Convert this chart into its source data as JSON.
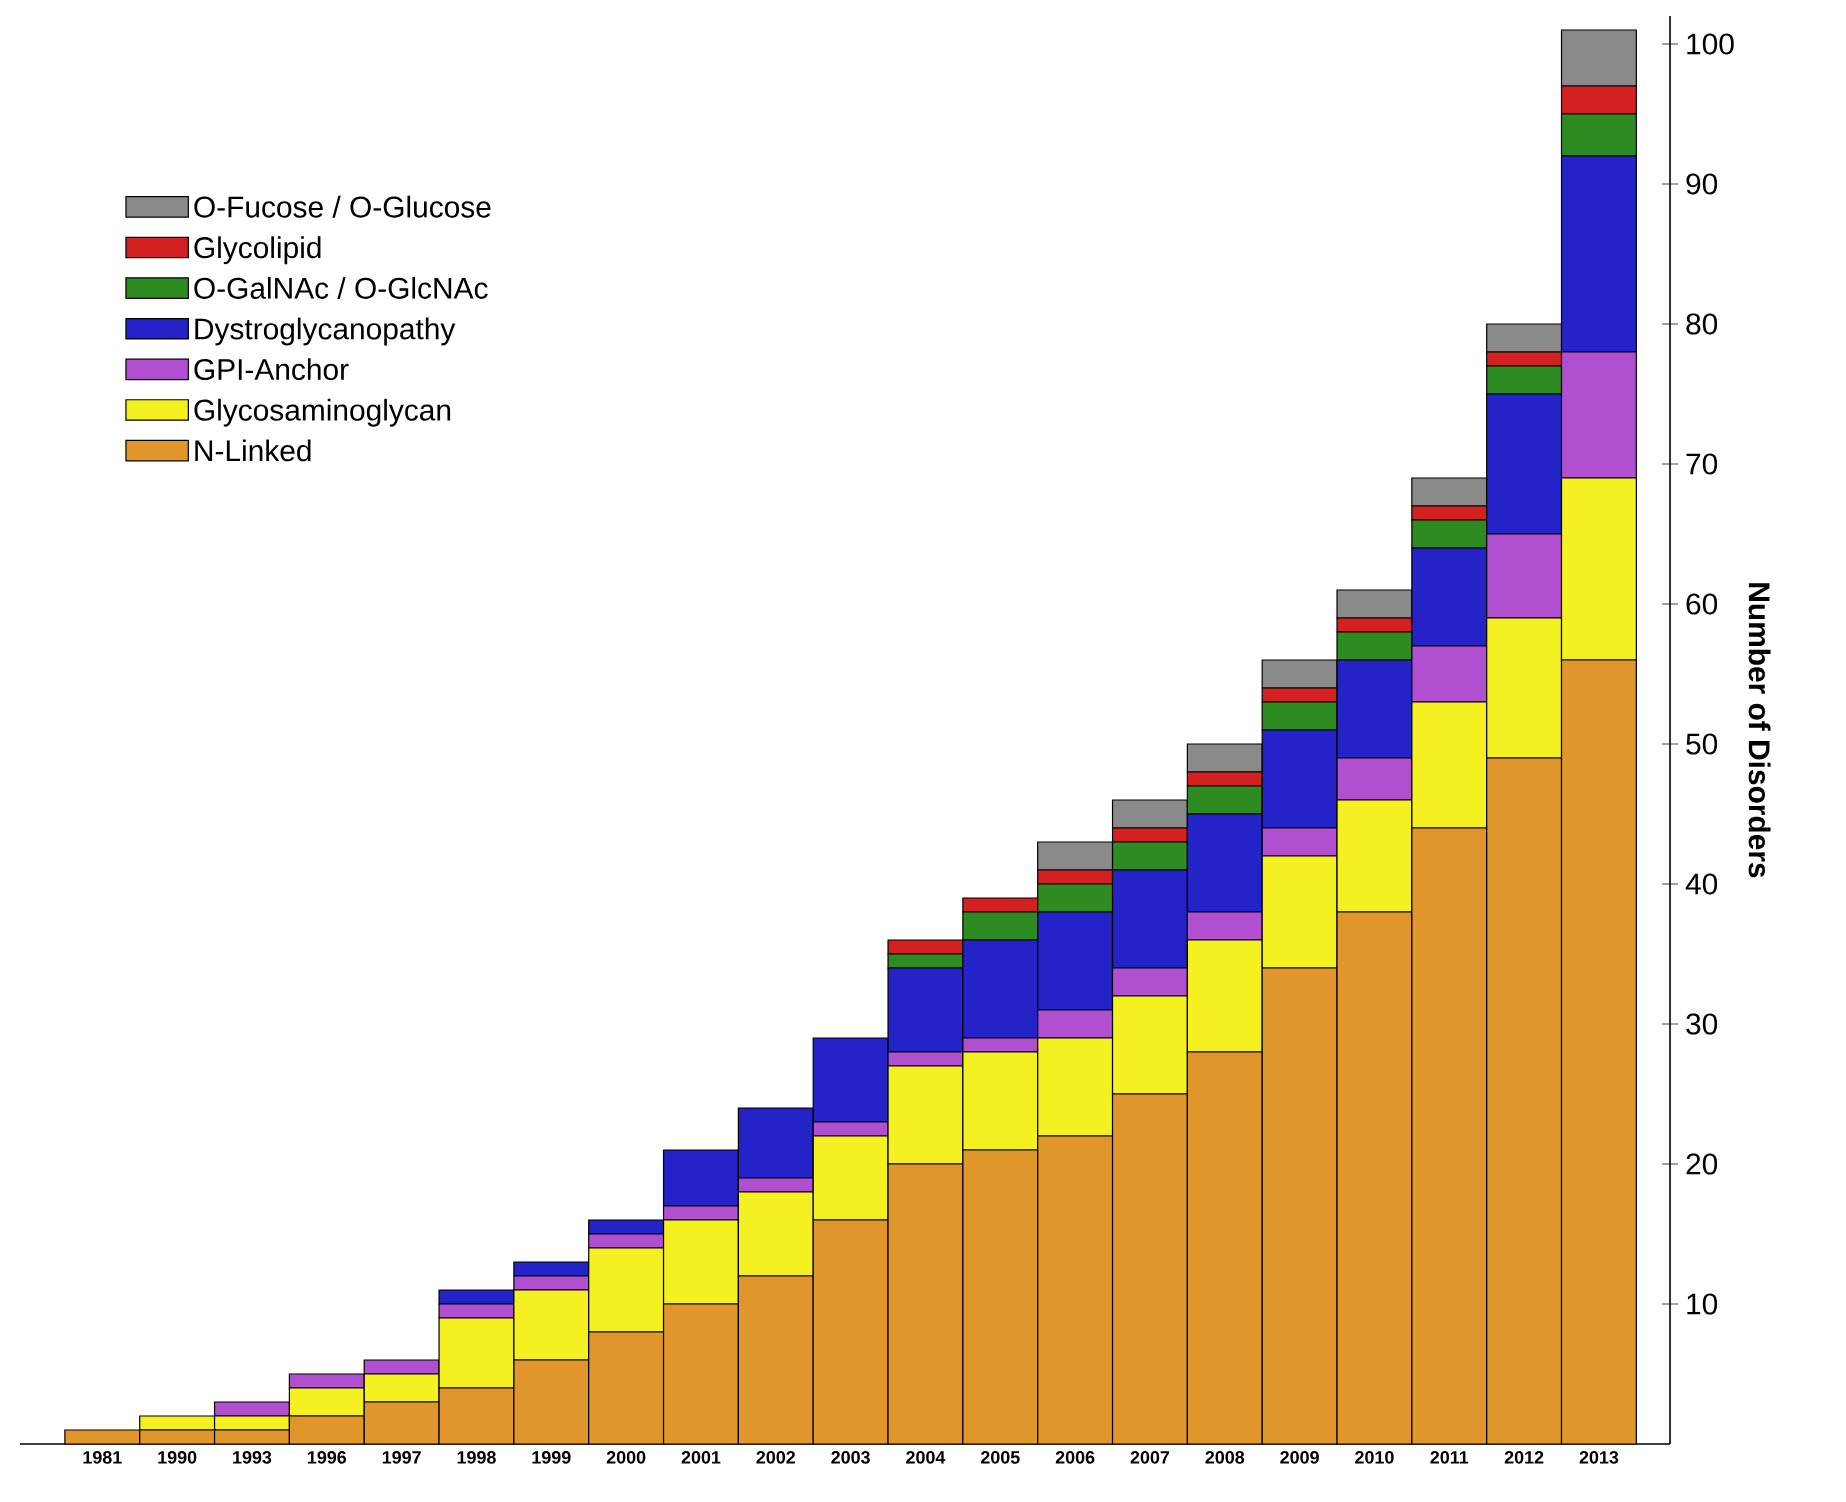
{
  "chart_data": {
    "type": "bar",
    "stacked": true,
    "ylabel": "Number of Disorders",
    "categories": [
      "1981",
      "1990",
      "1993",
      "1996",
      "1997",
      "1998",
      "1999",
      "2000",
      "2001",
      "2002",
      "2003",
      "2004",
      "2005",
      "2006",
      "2007",
      "2008",
      "2009",
      "2010",
      "2011",
      "2012",
      "2013"
    ],
    "series": [
      {
        "name": "N-Linked",
        "color": "#e0962a",
        "values": [
          1,
          1,
          1,
          2,
          3,
          4,
          6,
          8,
          10,
          12,
          16,
          20,
          21,
          22,
          25,
          28,
          34,
          38,
          44,
          49,
          56
        ]
      },
      {
        "name": "Glycosaminoglycan",
        "color": "#f5f020",
        "values": [
          0,
          1,
          1,
          2,
          2,
          5,
          5,
          6,
          6,
          6,
          6,
          7,
          7,
          7,
          7,
          8,
          8,
          8,
          9,
          10,
          13
        ]
      },
      {
        "name": "GPI-Anchor",
        "color": "#b050d0",
        "values": [
          0,
          0,
          1,
          1,
          1,
          1,
          1,
          1,
          1,
          1,
          1,
          1,
          1,
          2,
          2,
          2,
          2,
          3,
          4,
          6,
          9
        ]
      },
      {
        "name": "Dystroglycanopathy",
        "color": "#2323c8",
        "values": [
          0,
          0,
          0,
          0,
          0,
          1,
          1,
          1,
          4,
          5,
          6,
          6,
          7,
          7,
          7,
          7,
          7,
          7,
          7,
          10,
          14
        ]
      },
      {
        "name": "O-GalNAc / O-GlcNAc",
        "color": "#2e8b22",
        "values": [
          0,
          0,
          0,
          0,
          0,
          0,
          0,
          0,
          0,
          0,
          0,
          1,
          2,
          2,
          2,
          2,
          2,
          2,
          2,
          2,
          3
        ]
      },
      {
        "name": "Glycolipid",
        "color": "#d42020",
        "values": [
          0,
          0,
          0,
          0,
          0,
          0,
          0,
          0,
          0,
          0,
          0,
          1,
          1,
          1,
          1,
          1,
          1,
          1,
          1,
          1,
          2
        ]
      },
      {
        "name": "O-Fucose / O-Glucose",
        "color": "#8a8a8a",
        "values": [
          0,
          0,
          0,
          0,
          0,
          0,
          0,
          0,
          0,
          0,
          0,
          0,
          0,
          2,
          2,
          2,
          2,
          2,
          2,
          2,
          4
        ]
      }
    ],
    "ylim": [
      0,
      102
    ],
    "yticks": [
      10,
      20,
      30,
      40,
      50,
      60,
      70,
      80,
      90,
      100
    ],
    "legend": "top left"
  }
}
